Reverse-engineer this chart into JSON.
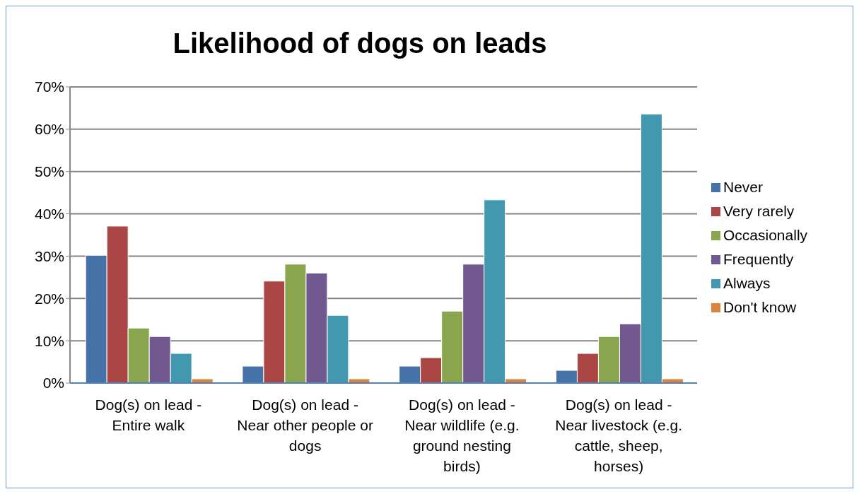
{
  "chart_data": {
    "type": "bar",
    "title": "Likelihood of dogs on leads",
    "categories": [
      "Dog(s) on lead - Entire walk",
      "Dog(s) on lead - Near other people or dogs",
      "Dog(s) on lead - Near wildlife (e.g. ground nesting birds)",
      "Dog(s) on lead - Near livestock (e.g. cattle, sheep, horses)"
    ],
    "series": [
      {
        "name": "Never",
        "color": "#4572a7",
        "values": [
          30.2,
          4,
          4,
          3
        ]
      },
      {
        "name": "Very rarely",
        "color": "#aa4643",
        "values": [
          37.1,
          24.1,
          6,
          7
        ]
      },
      {
        "name": "Occasionally",
        "color": "#89a54e",
        "values": [
          13,
          28.1,
          17,
          11
        ]
      },
      {
        "name": "Frequently",
        "color": "#71588f",
        "values": [
          11,
          26,
          28.1,
          14
        ]
      },
      {
        "name": "Always",
        "color": "#4198af",
        "values": [
          7,
          16,
          43.3,
          63.6
        ]
      },
      {
        "name": "Don't know",
        "color": "#db843d",
        "values": [
          1,
          1,
          1,
          1
        ]
      }
    ],
    "ylim": [
      0,
      70
    ],
    "yticks": [
      {
        "value": 0,
        "label": "0%"
      },
      {
        "value": 10,
        "label": "10%"
      },
      {
        "value": 20,
        "label": "20%"
      },
      {
        "value": 30,
        "label": "30%"
      },
      {
        "value": 40,
        "label": "40%"
      },
      {
        "value": 50,
        "label": "50%"
      },
      {
        "value": 60,
        "label": "60%"
      },
      {
        "value": 70,
        "label": "70%"
      }
    ],
    "grid": "y",
    "legend": "right"
  }
}
